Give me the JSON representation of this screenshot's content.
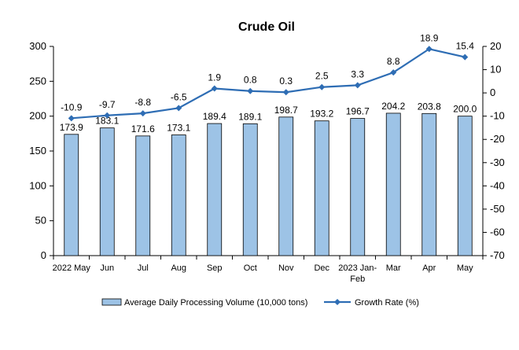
{
  "chart_data": {
    "type": "bar",
    "title": "Crude Oil",
    "categories": [
      "2022 May",
      "Jun",
      "Jul",
      "Aug",
      "Sep",
      "Oct",
      "Nov",
      "Dec",
      "2023 Jan-Feb",
      "Mar",
      "Apr",
      "May"
    ],
    "series": [
      {
        "name": "Average Daily Processing Volume (10,000 tons)",
        "type": "bar",
        "axis": "left",
        "values": [
          173.9,
          183.1,
          171.6,
          173.1,
          189.4,
          189.1,
          198.7,
          193.2,
          196.7,
          204.2,
          203.8,
          200.0
        ],
        "labels": [
          "173.9",
          "183.1",
          "171.6",
          "173.1",
          "189.4",
          "189.1",
          "198.7",
          "193.2",
          "196.7",
          "204.2",
          "203.8",
          "200.0"
        ],
        "color": "#9DC3E6",
        "border": "#000000"
      },
      {
        "name": "Growth Rate (%)",
        "type": "line",
        "axis": "right",
        "values": [
          -10.9,
          -9.7,
          -8.8,
          -6.5,
          1.9,
          0.8,
          0.3,
          2.5,
          3.3,
          8.8,
          18.9,
          15.4
        ],
        "labels": [
          "-10.9",
          "-9.7",
          "-8.8",
          "-6.5",
          "1.9",
          "0.8",
          "0.3",
          "2.5",
          "3.3",
          "8.8",
          "18.9",
          "15.4"
        ],
        "color": "#2E6DB4"
      }
    ],
    "y_left": {
      "min": 0,
      "max": 300,
      "ticks": [
        0,
        50,
        100,
        150,
        200,
        250,
        300
      ]
    },
    "y_right": {
      "min": -70,
      "max": 20,
      "ticks": [
        20,
        10,
        0,
        -10,
        -20,
        -30,
        -40,
        -50,
        -60,
        -70
      ]
    },
    "grid": false,
    "legend_position": "bottom"
  }
}
